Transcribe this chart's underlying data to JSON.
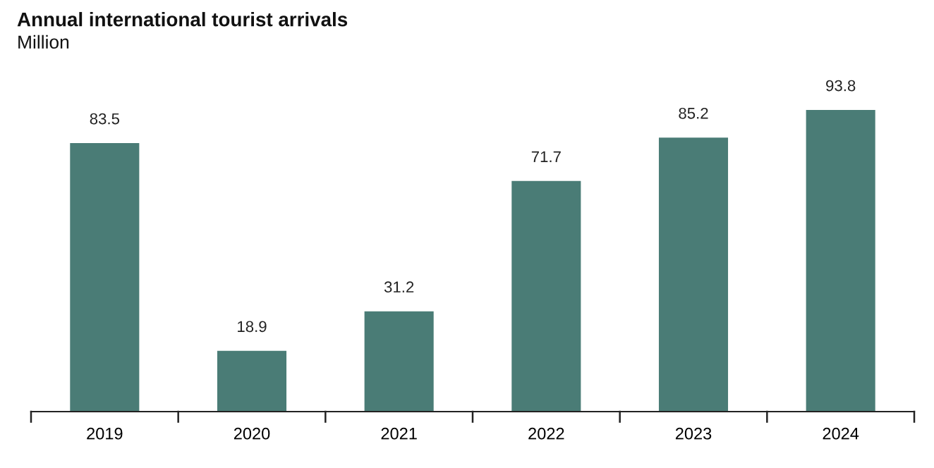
{
  "chart_data": {
    "type": "bar",
    "title": "Annual international tourist arrivals",
    "subtitle": "Million",
    "categories": [
      "2019",
      "2020",
      "2021",
      "2022",
      "2023",
      "2024"
    ],
    "values": [
      83.5,
      18.9,
      31.2,
      71.7,
      85.2,
      93.8
    ],
    "color": "#4a7c76",
    "data_labels": true,
    "tick_labels": "x",
    "grid": false,
    "legend": false
  }
}
